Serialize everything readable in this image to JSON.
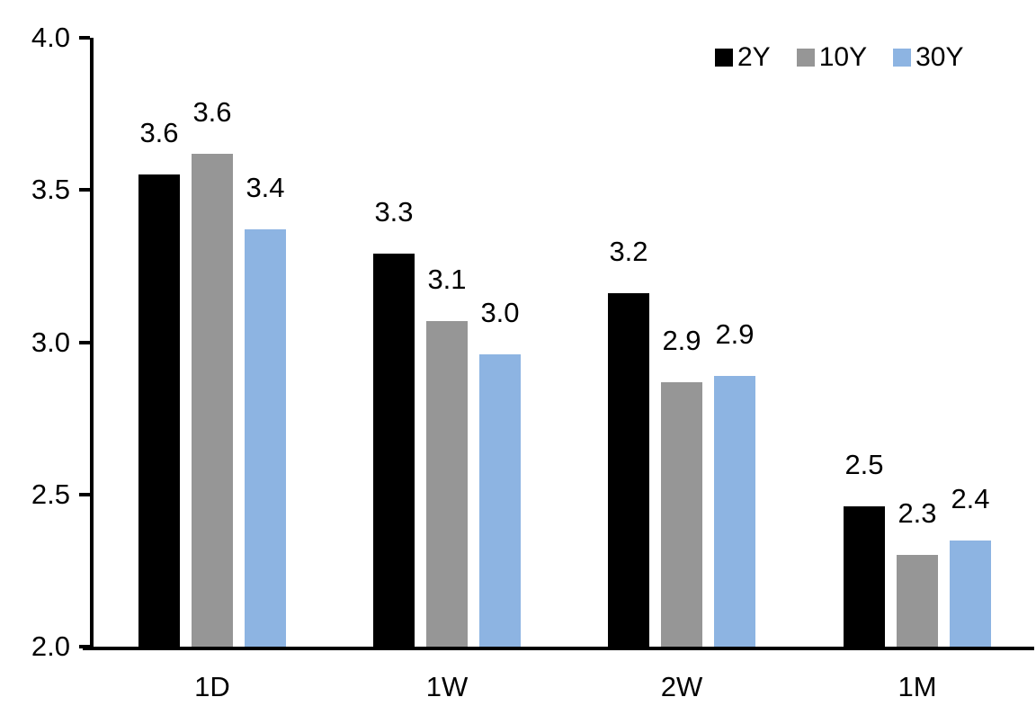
{
  "chart_data": {
    "type": "bar",
    "title": "",
    "xlabel": "",
    "ylabel": "",
    "categories": [
      "1D",
      "1W",
      "2W",
      "1M"
    ],
    "series": [
      {
        "name": "2Y",
        "color": "#000000",
        "values": [
          3.55,
          3.29,
          3.16,
          2.46
        ],
        "bar_labels": [
          "3.6",
          "3.3",
          "3.2",
          "2.5"
        ]
      },
      {
        "name": "10Y",
        "color": "#969696",
        "values": [
          3.62,
          3.07,
          2.87,
          2.3
        ],
        "bar_labels": [
          "3.6",
          "3.1",
          "2.9",
          "2.3"
        ]
      },
      {
        "name": "30Y",
        "color": "#8DB4E2",
        "values": [
          3.37,
          2.96,
          2.89,
          2.35
        ],
        "bar_labels": [
          "3.4",
          "3.0",
          "2.9",
          "2.4"
        ]
      }
    ],
    "ylim": [
      2.0,
      4.0
    ],
    "yticks": [
      {
        "value": 4.0,
        "label": "4.0"
      },
      {
        "value": 3.5,
        "label": "3.5"
      },
      {
        "value": 3.0,
        "label": "3.0"
      },
      {
        "value": 2.5,
        "label": "2.5"
      },
      {
        "value": 2.0,
        "label": "2.0"
      }
    ],
    "legend": {
      "position": "top-right",
      "entries": [
        "2Y",
        "10Y",
        "30Y"
      ]
    },
    "grid": false,
    "axis_color": "#000000",
    "text_color": "#000000",
    "background_color": "#FFFFFF"
  }
}
